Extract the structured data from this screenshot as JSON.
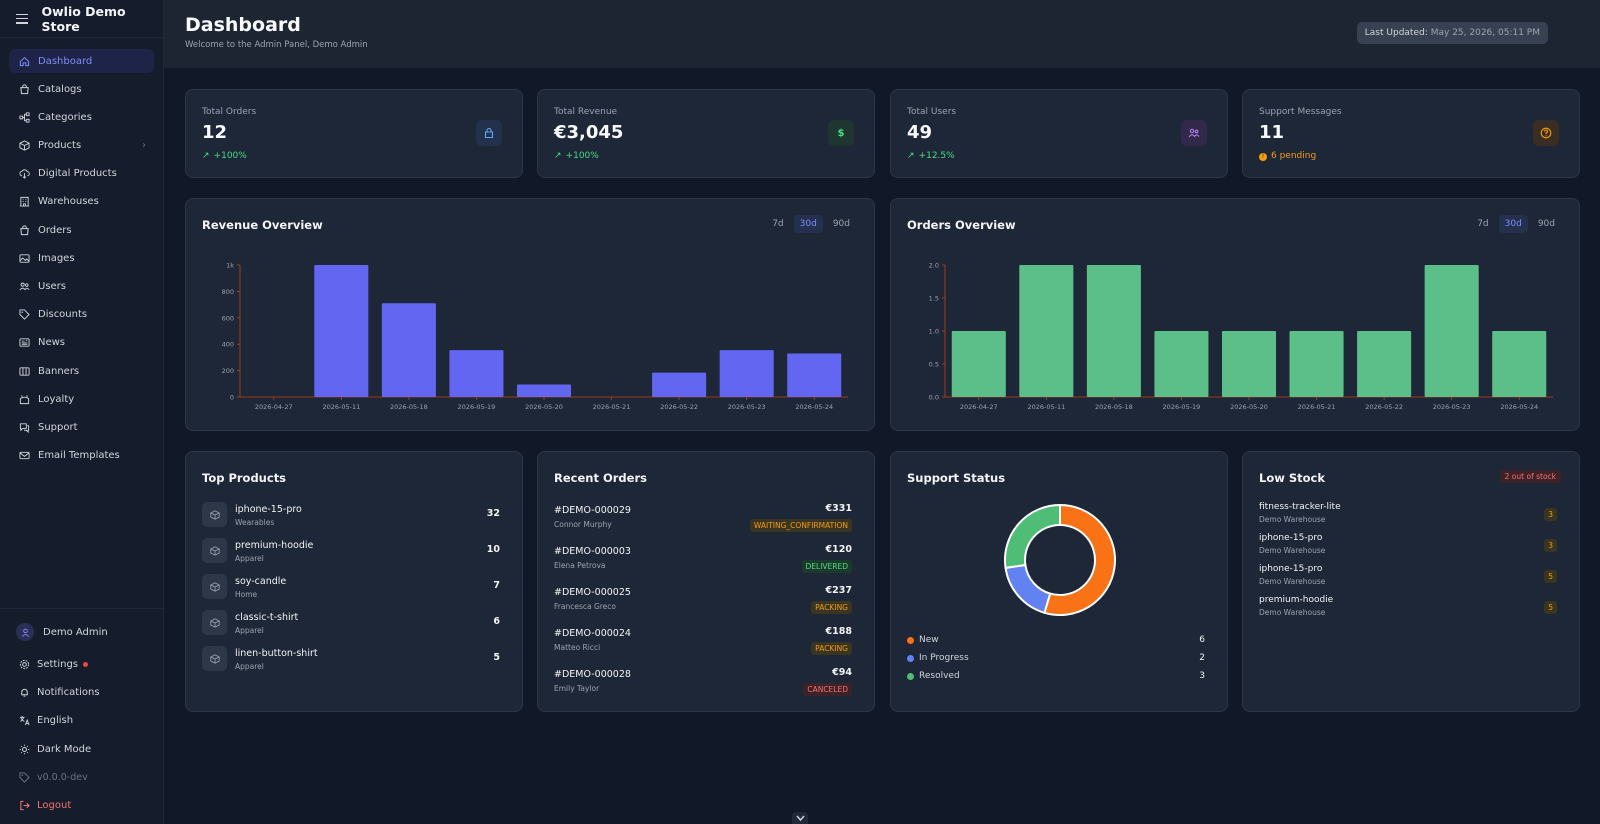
{
  "sidebar": {
    "store_name": "Owlio Demo Store",
    "items": [
      {
        "label": "Dashboard",
        "icon": "home-icon",
        "active": true
      },
      {
        "label": "Catalogs",
        "icon": "bag-icon"
      },
      {
        "label": "Categories",
        "icon": "tree-icon"
      },
      {
        "label": "Products",
        "icon": "box-icon",
        "expandable": true
      },
      {
        "label": "Digital Products",
        "icon": "cloud-download-icon"
      },
      {
        "label": "Warehouses",
        "icon": "building-icon"
      },
      {
        "label": "Orders",
        "icon": "shopping-bag-icon"
      },
      {
        "label": "Images",
        "icon": "image-icon"
      },
      {
        "label": "Users",
        "icon": "users-icon"
      },
      {
        "label": "Discounts",
        "icon": "tag-icon"
      },
      {
        "label": "News",
        "icon": "newspaper-icon"
      },
      {
        "label": "Banners",
        "icon": "banner-icon"
      },
      {
        "label": "Loyalty",
        "icon": "gift-icon"
      },
      {
        "label": "Support",
        "icon": "chat-icon"
      },
      {
        "label": "Email Templates",
        "icon": "mail-icon"
      }
    ],
    "user_name": "Demo Admin",
    "bottom": {
      "settings": "Settings",
      "notifications": "Notifications",
      "language": "English",
      "theme": "Dark Mode",
      "version": "v0.0.0-dev",
      "logout": "Logout"
    }
  },
  "header": {
    "title": "Dashboard",
    "subtitle": "Welcome to the Admin Panel, Demo Admin",
    "updated_label": "Last Updated:",
    "updated_value": "May 25, 2026, 05:11 PM"
  },
  "stats": [
    {
      "label": "Total Orders",
      "value": "12",
      "trend": "+100%",
      "icon": "lock-bag-icon",
      "color": "#60a5fa",
      "bg": "#23314d"
    },
    {
      "label": "Total Revenue",
      "value": "€3,045",
      "trend": "+100%",
      "icon": "dollar-icon",
      "color": "#4ade80",
      "bg": "#1e3530"
    },
    {
      "label": "Total Users",
      "value": "49",
      "trend": "+12.5%",
      "icon": "users-icon",
      "color": "#c084fc",
      "bg": "#31284a"
    },
    {
      "label": "Support Messages",
      "value": "11",
      "trend": "6 pending",
      "icon": "help-icon",
      "color": "#f59e0b",
      "bg": "#3a2d22"
    }
  ],
  "revenue": {
    "title": "Revenue Overview",
    "ranges": [
      "7d",
      "30d",
      "90d"
    ],
    "selected": "30d"
  },
  "orders_chart": {
    "title": "Orders Overview",
    "ranges": [
      "7d",
      "30d",
      "90d"
    ],
    "selected": "30d"
  },
  "chart_data": [
    {
      "type": "bar",
      "title": "Revenue Overview",
      "categories": [
        "2026-04-27",
        "2026-05-11",
        "2026-05-18",
        "2026-05-19",
        "2026-05-20",
        "2026-05-21",
        "2026-05-22",
        "2026-05-23",
        "2026-05-24"
      ],
      "values": [
        0,
        1000,
        710,
        355,
        95,
        0,
        185,
        355,
        330
      ],
      "yticks": [
        "0",
        "200",
        "400",
        "600",
        "800",
        "1k"
      ],
      "ylim": [
        0,
        1000
      ],
      "color": "#6366f1"
    },
    {
      "type": "bar",
      "title": "Orders Overview",
      "categories": [
        "2026-04-27",
        "2026-05-11",
        "2026-05-18",
        "2026-05-19",
        "2026-05-20",
        "2026-05-21",
        "2026-05-22",
        "2026-05-23",
        "2026-05-24"
      ],
      "values": [
        1,
        2,
        2,
        1,
        1,
        1,
        1,
        2,
        1
      ],
      "yticks": [
        "0.0",
        "0.5",
        "1.0",
        "1.5",
        "2.0"
      ],
      "ylim": [
        0,
        2
      ],
      "color": "#5cbf89"
    },
    {
      "type": "pie",
      "title": "Support Status",
      "labels": [
        "New",
        "In Progress",
        "Resolved"
      ],
      "values": [
        6,
        2,
        3
      ],
      "colors": [
        "#f97316",
        "#6382f2",
        "#50bd77"
      ]
    }
  ],
  "top_products": {
    "title": "Top Products",
    "items": [
      {
        "name": "iphone-15-pro",
        "category": "Wearables",
        "qty": "32"
      },
      {
        "name": "premium-hoodie",
        "category": "Apparel",
        "qty": "10"
      },
      {
        "name": "soy-candle",
        "category": "Home",
        "qty": "7"
      },
      {
        "name": "classic-t-shirt",
        "category": "Apparel",
        "qty": "6"
      },
      {
        "name": "linen-button-shirt",
        "category": "Apparel",
        "qty": "5"
      }
    ]
  },
  "recent_orders": {
    "title": "Recent Orders",
    "items": [
      {
        "id": "#DEMO-000029",
        "customer": "Connor Murphy",
        "amount": "€331",
        "status": "WAITING_CONFIRMATION",
        "cls": "st-wait"
      },
      {
        "id": "#DEMO-000003",
        "customer": "Elena Petrova",
        "amount": "€120",
        "status": "DELIVERED",
        "cls": "st-del"
      },
      {
        "id": "#DEMO-000025",
        "customer": "Francesca Greco",
        "amount": "€237",
        "status": "PACKING",
        "cls": "st-pack"
      },
      {
        "id": "#DEMO-000024",
        "customer": "Matteo Ricci",
        "amount": "€188",
        "status": "PACKING",
        "cls": "st-pack"
      },
      {
        "id": "#DEMO-000028",
        "customer": "Emily Taylor",
        "amount": "€94",
        "status": "CANCELED",
        "cls": "st-can"
      }
    ]
  },
  "support_status": {
    "title": "Support Status"
  },
  "low_stock": {
    "title": "Low Stock",
    "badge": "2 out of stock",
    "items": [
      {
        "name": "fitness-tracker-lite",
        "warehouse": "Demo Warehouse",
        "qty": "3"
      },
      {
        "name": "iphone-15-pro",
        "warehouse": "Demo Warehouse",
        "qty": "3"
      },
      {
        "name": "iphone-15-pro",
        "warehouse": "Demo Warehouse",
        "qty": "5"
      },
      {
        "name": "premium-hoodie",
        "warehouse": "Demo Warehouse",
        "qty": "5"
      }
    ]
  }
}
